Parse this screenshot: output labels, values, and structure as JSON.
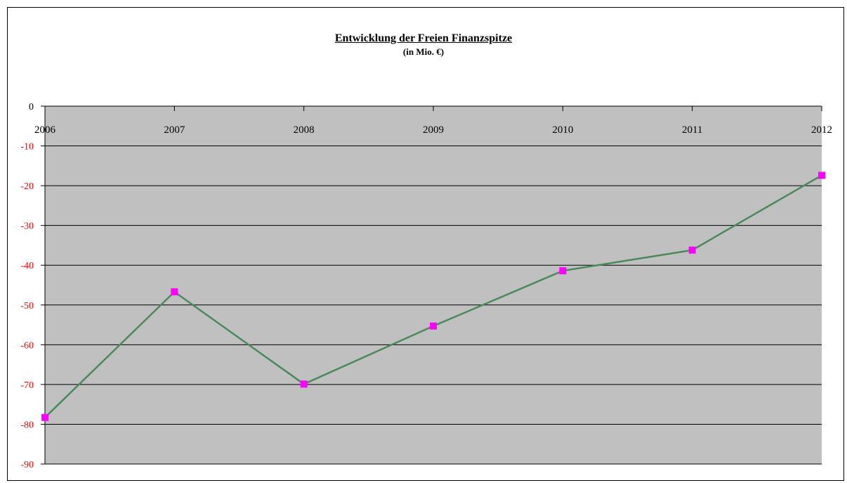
{
  "chart_data": {
    "type": "line",
    "title": "Entwicklung der Freien Finanzspitze",
    "subtitle": "(in Mio. €)",
    "xlabel": "",
    "ylabel": "",
    "categories": [
      "2006",
      "2007",
      "2008",
      "2009",
      "2010",
      "2011",
      "2012"
    ],
    "series": [
      {
        "values": [
          -78.3,
          -46.7,
          -69.9,
          -55.3,
          -41.4,
          -36.2,
          -17.4
        ]
      }
    ],
    "ylim": [
      -90,
      0
    ],
    "yticks": [
      0,
      -10,
      -20,
      -30,
      -40,
      -50,
      -60,
      -70,
      -80,
      -90
    ],
    "grid": true,
    "legend": "none",
    "colors": {
      "plot_background": "#c0c0c0",
      "line": "#4a8a5a",
      "marker": "#ff00ff",
      "negative_tick_labels": "#ff0000",
      "zero_tick_label": "#000000"
    }
  }
}
